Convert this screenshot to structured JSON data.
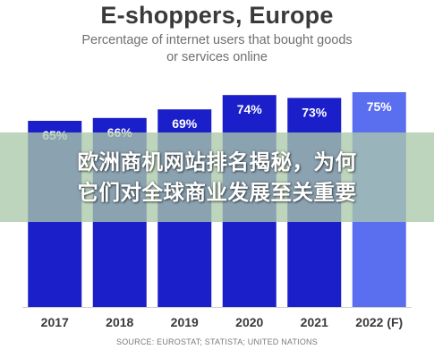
{
  "chart_data": {
    "type": "bar",
    "title": "E-shoppers, Europe",
    "subtitle_lines": [
      "Percentage of internet users that bought goods",
      "or services online"
    ],
    "categories": [
      "2017",
      "2018",
      "2019",
      "2020",
      "2021",
      "2022 (F)"
    ],
    "values": [
      65,
      66,
      69,
      74,
      73,
      75
    ],
    "data_labels": [
      "65%",
      "66%",
      "69%",
      "74%",
      "73%",
      "75%"
    ],
    "ylim": [
      0,
      80
    ],
    "xlabel": "",
    "ylabel": "",
    "grid": false,
    "legend": "none",
    "source": "SOURCE: EUROSTAT; STATISTA; UNITED NATIONS",
    "colors": {
      "bar": "#1b1fc9",
      "forecast_bar": "#5a6ff0",
      "label": "#ffffff",
      "axis_text": "#3a3a3a"
    }
  },
  "overlay": {
    "line1": "欧洲商机网站排名揭秘，为何",
    "line2": "它们对全球商业发展至关重要"
  }
}
